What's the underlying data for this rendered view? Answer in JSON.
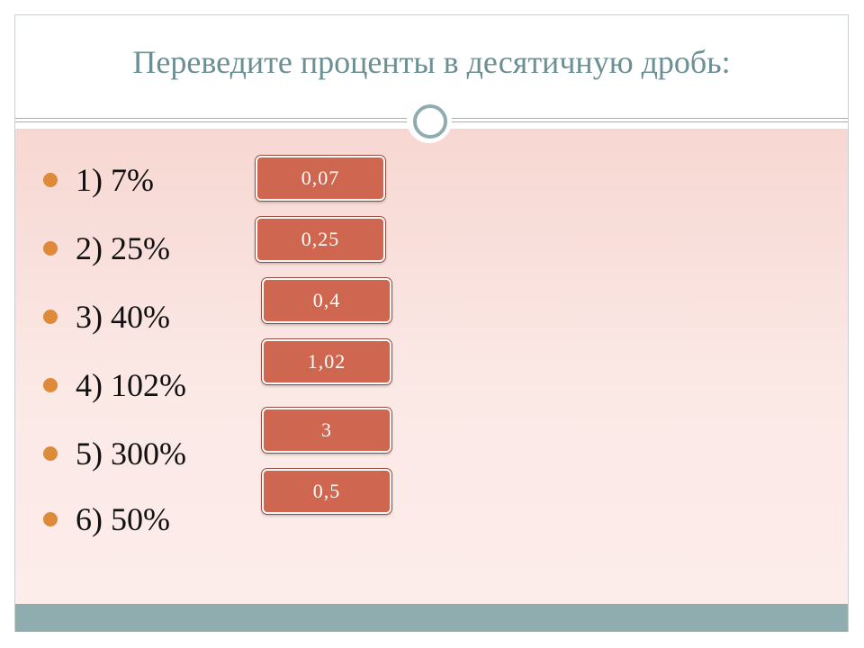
{
  "slide": {
    "title": "Переведите проценты в десятичную дробь:"
  },
  "items": [
    {
      "label": "1) 7%",
      "answer": "0,07"
    },
    {
      "label": "2) 25%",
      "answer": "0,25"
    },
    {
      "label": "3) 40%",
      "answer": "0,4"
    },
    {
      "label": "4) 102%",
      "answer": "1,02"
    },
    {
      "label": "5) 300%",
      "answer": "3"
    },
    {
      "label": "6) 50%",
      "answer": "0,5"
    }
  ],
  "colors": {
    "title": "#6b8f93",
    "accent": "#8fadaf",
    "bullet": "#dd8a3a",
    "answer_box": "#cf6650",
    "content_bg": "#fbe9e6"
  },
  "icons": {
    "divider_ornament": "ring-icon",
    "list_marker": "bullet-dot-icon"
  }
}
